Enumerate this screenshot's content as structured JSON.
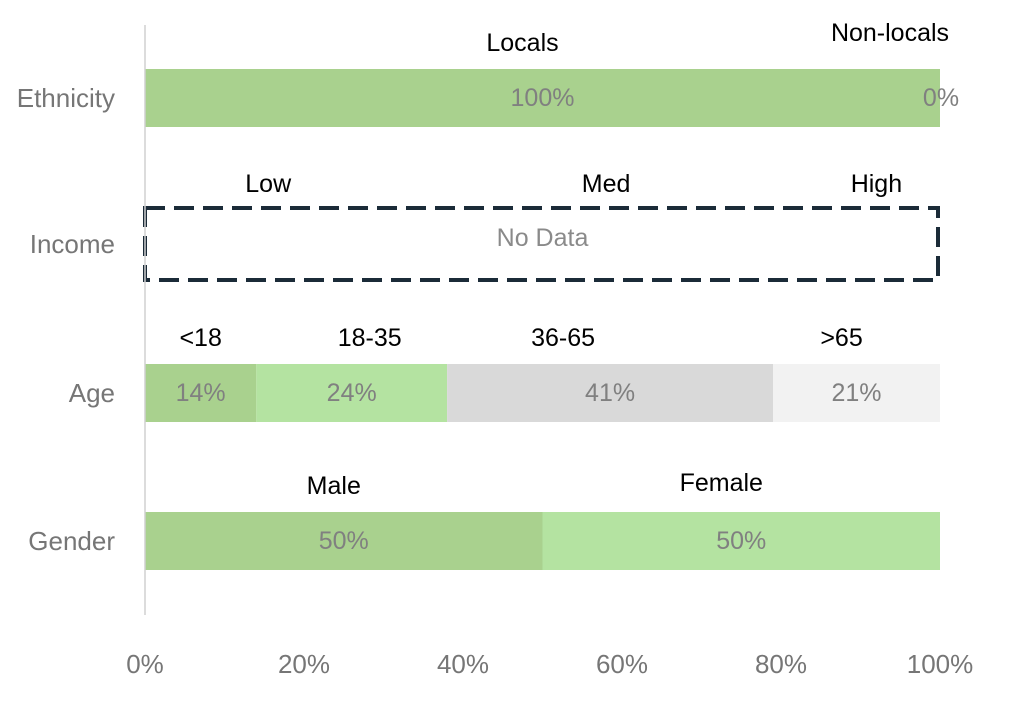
{
  "chart_data": {
    "type": "bar",
    "orientation": "horizontal",
    "stacked": "percent",
    "xlim": [
      0,
      100
    ],
    "x_ticks": [
      "0%",
      "20%",
      "40%",
      "60%",
      "80%",
      "100%"
    ],
    "grid": false,
    "legend": "none",
    "rows": [
      {
        "category": "Ethnicity",
        "segments": [
          {
            "name": "Locals",
            "value": 100,
            "label": "100%",
            "color": "#a9d18e"
          },
          {
            "name": "Non-locals",
            "value": 0,
            "label": "0%",
            "color": "#b4e3a1"
          }
        ]
      },
      {
        "category": "Income",
        "no_data": true,
        "no_data_label": "No Data",
        "segment_names": [
          "Low",
          "Med",
          "High"
        ]
      },
      {
        "category": "Age",
        "segments": [
          {
            "name": "<18",
            "value": 14,
            "label": "14%",
            "color": "#a9d18e"
          },
          {
            "name": "18-35",
            "value": 24,
            "label": "24%",
            "color": "#b4e3a1"
          },
          {
            "name": "36-65",
            "value": 41,
            "label": "41%",
            "color": "#d9d9d9"
          },
          {
            "name": ">65",
            "value": 21,
            "label": "21%",
            "color": "#f2f2f2"
          }
        ]
      },
      {
        "category": "Gender",
        "segments": [
          {
            "name": "Male",
            "value": 50,
            "label": "50%",
            "color": "#a9d18e"
          },
          {
            "name": "Female",
            "value": 50,
            "label": "50%",
            "color": "#b4e3a1"
          }
        ]
      }
    ]
  }
}
